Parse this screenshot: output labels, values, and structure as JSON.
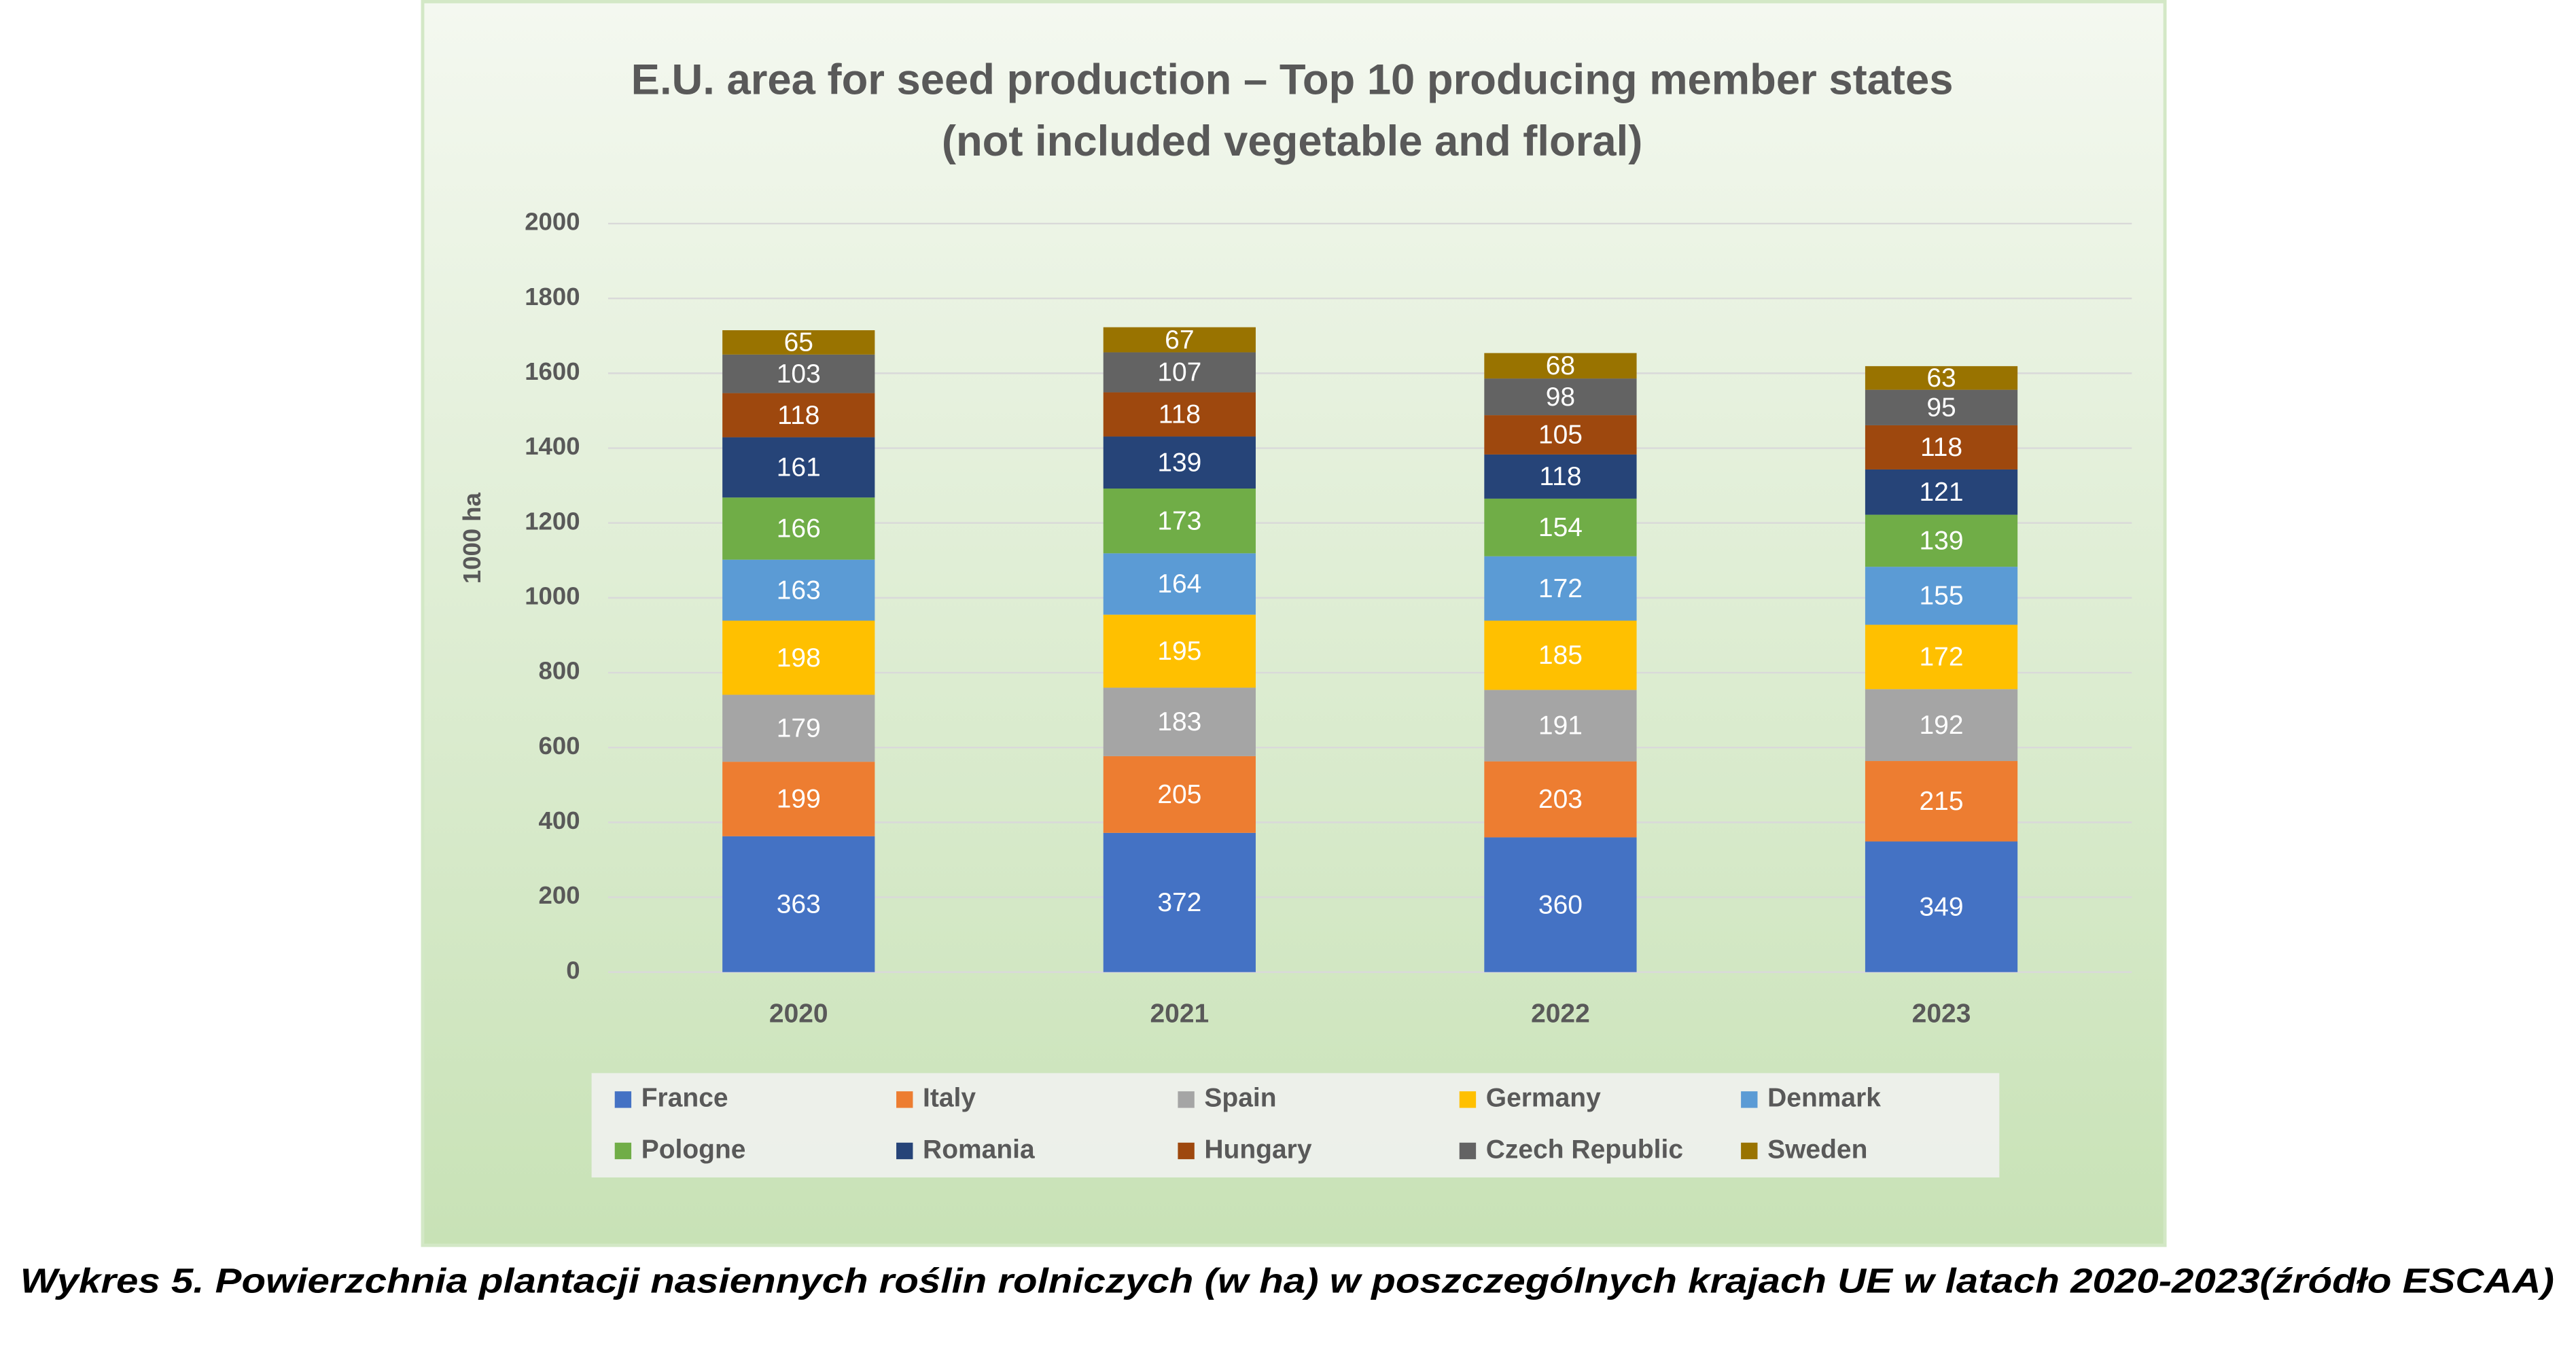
{
  "chart_data": {
    "type": "stacked-bar",
    "title": "E.U. area for seed production – Top 10 producing member states",
    "subtitle": "(not included vegetable and floral)",
    "y_label": "1000 ha",
    "categories": [
      "2020",
      "2021",
      "2022",
      "2023"
    ],
    "series": [
      {
        "name": "France",
        "color": "#4472c4",
        "values": [
          363,
          372,
          360,
          349
        ]
      },
      {
        "name": "Italy",
        "color": "#ed7d31",
        "values": [
          199,
          205,
          203,
          215
        ]
      },
      {
        "name": "Spain",
        "color": "#a5a5a5",
        "values": [
          179,
          183,
          191,
          192
        ]
      },
      {
        "name": "Germany",
        "color": "#ffc000",
        "values": [
          198,
          195,
          185,
          172
        ]
      },
      {
        "name": "Denmark",
        "color": "#5b9bd5",
        "values": [
          163,
          164,
          172,
          155
        ]
      },
      {
        "name": "Pologne",
        "color": "#70ad47",
        "values": [
          166,
          173,
          154,
          139
        ]
      },
      {
        "name": "Romania",
        "color": "#264478",
        "values": [
          161,
          139,
          118,
          121
        ]
      },
      {
        "name": "Hungary",
        "color": "#9e480e",
        "values": [
          118,
          118,
          105,
          118
        ]
      },
      {
        "name": "Czech Republic",
        "color": "#636363",
        "values": [
          103,
          107,
          98,
          95
        ]
      },
      {
        "name": "Sweden",
        "color": "#997300",
        "values": [
          65,
          67,
          68,
          63
        ]
      }
    ],
    "ylim": [
      0,
      2000
    ],
    "yticks": [
      0,
      200,
      400,
      600,
      800,
      1000,
      1200,
      1400,
      1600,
      1800,
      2000
    ],
    "grid": true,
    "legend": "bottom",
    "caption": "Wykres 5. Powierzchnia plantacji nasiennych roślin rolniczych (w ha) w poszczególnych krajach UE w latach 2020-2023(źródło ESCAA)"
  }
}
